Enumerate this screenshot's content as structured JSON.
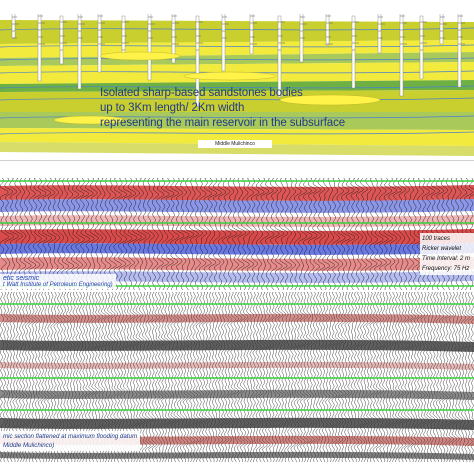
{
  "geology_panel": {
    "caption_lines": [
      "Isolated sharp-based sandstones bodies",
      "up to 3Km length/ 2Km width",
      "representing the main reservoir in the subsurface"
    ],
    "bottom_label": "Middle Mulichinco",
    "colors": {
      "sand": "#f2ea3c",
      "sand_dark": "#c9cf2f",
      "mud": "#a9c95a",
      "green": "#6fb043",
      "surface": "#4b7fd0"
    }
  },
  "synthetic_panel": {
    "label_title": "etic seismic",
    "label_source": "t Watt Institute of Petroleum Engineering)",
    "params": [
      "100 traces",
      "Ricker wavelet",
      "Time Interval: 2 m",
      "Frequency: 75 Hz"
    ],
    "colors": {
      "positive": "#d42a2a",
      "negative": "#2b3fd6",
      "horizon": "#39d13c"
    }
  },
  "real_panel": {
    "caption_lines": [
      "mic section flattened at maximum flooding datum",
      "Middle Mulichinco)"
    ],
    "colors": {
      "horizon": "#39d13c",
      "dark": "#2a2a2a",
      "red": "#b6322c"
    }
  }
}
